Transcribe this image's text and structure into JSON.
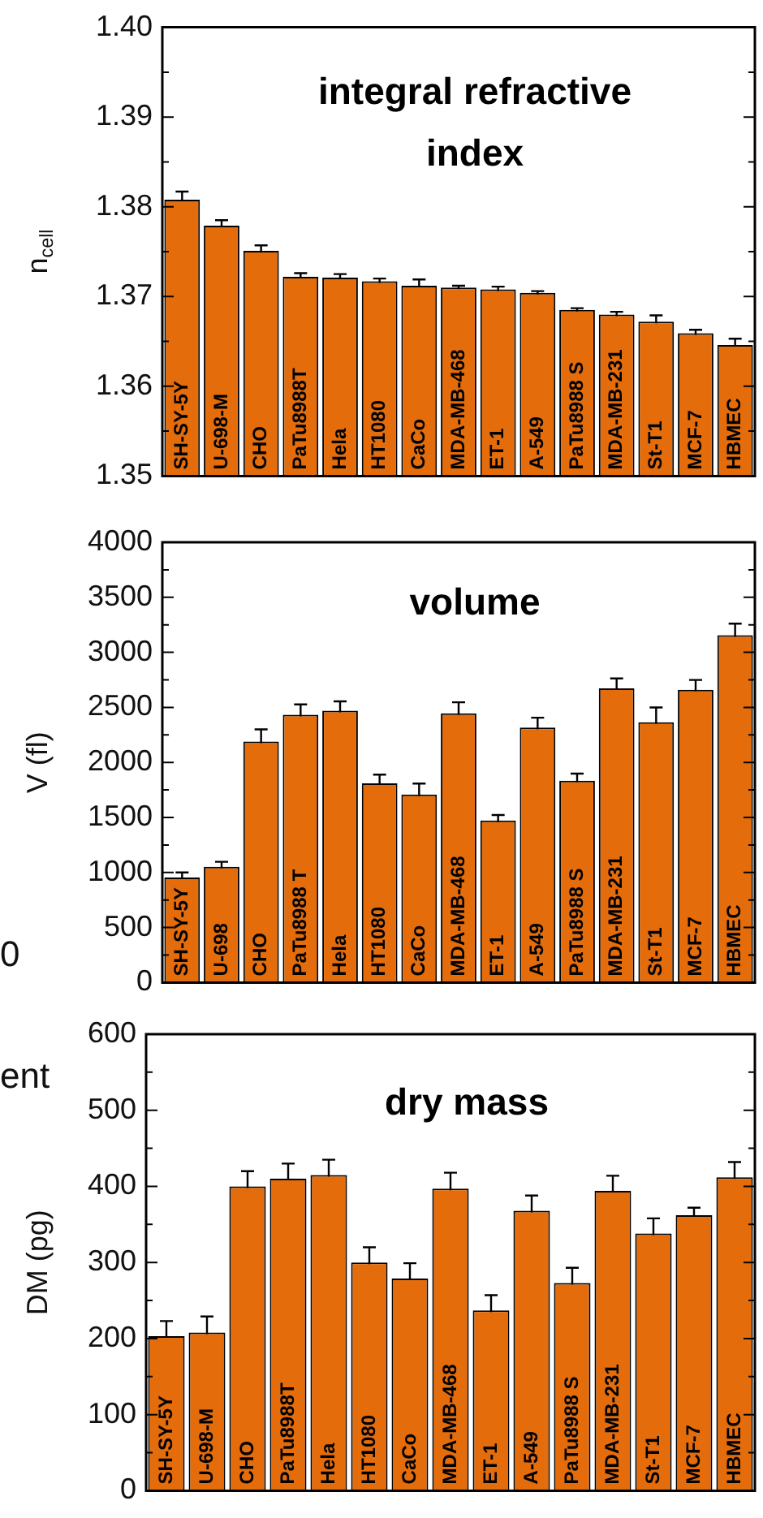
{
  "chart_data": [
    {
      "type": "bar",
      "title": "integral refractive index",
      "ylabel": "n$_{cell}$",
      "categories": [
        "SH-SY-5Y",
        "U-698-M",
        "CHO",
        "PaTu8988T",
        "Hela",
        "HT1080",
        "CaCo",
        "MDA-MB-468",
        "ET-1",
        "A-549",
        "PaTu8988 S",
        "MDA-MB-231",
        "St-T1",
        "MCF-7",
        "HBMEC"
      ],
      "values": [
        1.3808,
        1.3779,
        1.3751,
        1.3722,
        1.3721,
        1.3717,
        1.3712,
        1.371,
        1.3708,
        1.3704,
        1.3685,
        1.368,
        1.3672,
        1.3659,
        1.3646
      ],
      "errors": [
        0.0009,
        0.0006,
        0.0006,
        0.0004,
        0.0004,
        0.0003,
        0.0007,
        0.0002,
        0.0003,
        0.0002,
        0.0002,
        0.0003,
        0.0007,
        0.0004,
        0.0007
      ],
      "color": "#e46c0a",
      "ylim": [
        1.35,
        1.4
      ],
      "yticks": [
        1.35,
        {
          "value": 1.355,
          "label": null
        },
        {
          "value": 1.36,
          "label": "1.36"
        },
        {
          "value": 1.365,
          "label": null
        },
        {
          "value": 1.37,
          "label": "1.37"
        },
        {
          "value": 1.375,
          "label": null
        },
        {
          "value": 1.38,
          "label": "1.38"
        },
        {
          "value": 1.385,
          "label": null
        },
        {
          "value": 1.39,
          "label": "1.39"
        },
        {
          "value": 1.395,
          "label": null
        },
        {
          "value": 1.4,
          "label": "1.40"
        }
      ],
      "grid": false,
      "legend": false
    },
    {
      "type": "bar",
      "title": "volume",
      "ylabel": "V (fl)",
      "categories": [
        "SH-SY-5Y",
        "U-698",
        "CHO",
        "PaTu8988 T",
        "Hela",
        "HT1080",
        "CaCo",
        "MDA-MB-468",
        "ET-1",
        "A-549",
        "PaTu8988 S",
        "MDA-MB-231",
        "St-T1",
        "MCF-7",
        "HBMEC"
      ],
      "values": [
        955,
        1052,
        2190,
        2432,
        2470,
        1809,
        1708,
        2446,
        1472,
        2316,
        1833,
        2673,
        2364,
        2659,
        3156
      ],
      "errors": [
        45,
        45,
        110,
        95,
        85,
        80,
        100,
        100,
        50,
        90,
        65,
        90,
        135,
        90,
        105
      ],
      "color": "#e46c0a",
      "ylim": [
        0,
        4000
      ],
      "yticks": [
        0,
        {
          "value": 250,
          "label": null
        },
        500,
        {
          "value": 750,
          "label": null
        },
        1000,
        {
          "value": 1250,
          "label": null
        },
        1500,
        {
          "value": 1750,
          "label": null
        },
        2000,
        {
          "value": 2250,
          "label": null
        },
        2500,
        {
          "value": 2750,
          "label": null
        },
        3000,
        {
          "value": 3250,
          "label": null
        },
        3500,
        {
          "value": 3750,
          "label": null
        },
        4000
      ],
      "grid": false,
      "legend": false,
      "annotations": [
        "0"
      ]
    },
    {
      "type": "bar",
      "title": "dry mass",
      "ylabel": "DM (pg)",
      "categories": [
        "SH-SY-5Y",
        "U-698-M",
        "CHO",
        "PaTu8988T",
        "Hela",
        "HT1080",
        "CaCo",
        "MDA-MB-468",
        "ET-1",
        "A-549",
        "PaTu8988 S",
        "MDA-MB-231",
        "St-T1",
        "MCF-7",
        "HBMEC"
      ],
      "values": [
        203,
        208,
        400,
        410,
        415,
        300,
        279,
        397,
        237,
        368,
        273,
        394,
        338,
        362,
        412
      ],
      "errors": [
        20,
        21,
        20,
        20,
        20,
        20,
        20,
        21,
        20,
        20,
        20,
        20,
        20,
        10,
        20
      ],
      "color": "#e46c0a",
      "ylim": [
        0,
        600
      ],
      "yticks": [
        0,
        {
          "value": 50,
          "label": null
        },
        100,
        {
          "value": 150,
          "label": null
        },
        200,
        {
          "value": 250,
          "label": null
        },
        300,
        {
          "value": 350,
          "label": null
        },
        400,
        {
          "value": 450,
          "label": null
        },
        500,
        {
          "value": 550,
          "label": null
        },
        600
      ],
      "grid": false,
      "legend": false,
      "annotations": [
        "ent"
      ]
    }
  ]
}
